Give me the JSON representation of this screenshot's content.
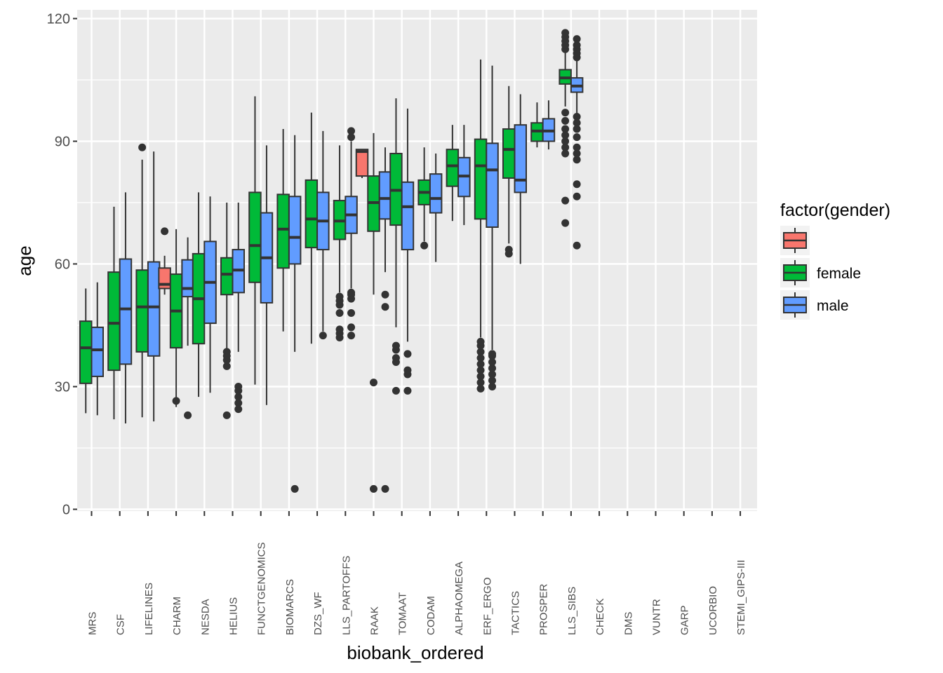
{
  "chart_data": {
    "type": "boxplot",
    "xlabel": "biobank_ordered",
    "ylabel": "age",
    "ylim": [
      0,
      120
    ],
    "yticks": [
      0,
      30,
      60,
      90,
      120
    ],
    "grid": true,
    "legend_position": "right",
    "legend": {
      "title": "factor(gender)",
      "entries": [
        {
          "label": "",
          "color": "#F8766D"
        },
        {
          "label": "female",
          "color": "#00BA38"
        },
        {
          "label": "male",
          "color": "#619CFF"
        }
      ]
    },
    "colors": {
      "unknown": "#F8766D",
      "female": "#00BA38",
      "male": "#619CFF",
      "panel": "#EBEBEB",
      "grid": "#FFFFFF",
      "outline": "#333333"
    },
    "categories": [
      "MRS",
      "CSF",
      "LIFELINES",
      "CHARM",
      "NESDA",
      "HELIUS",
      "FUNCTGENOMICS",
      "BIOMARCS",
      "DZS_WF",
      "LLS_PARTOFFS",
      "RAAK",
      "TOMAAT",
      "CODAM",
      "ALPHAOMEGA",
      "ERF_ERGO",
      "TACTICS",
      "PROSPER",
      "LLS_SIBS",
      "CHECK",
      "DMS",
      "VUNTR",
      "GARP",
      "UCORBIO",
      "STEMI_GIPS-III"
    ],
    "groups": [
      {
        "category": "MRS",
        "boxes": [
          {
            "gender": "female",
            "min": 23.5,
            "q1": 30.8,
            "median": 39.5,
            "q3": 46.0,
            "max": 54.0,
            "outliers": []
          },
          {
            "gender": "male",
            "min": 23.0,
            "q1": 32.5,
            "median": 39.0,
            "q3": 44.5,
            "max": 55.5,
            "outliers": []
          }
        ]
      },
      {
        "category": "CSF",
        "boxes": [
          {
            "gender": "female",
            "min": 22.0,
            "q1": 34.0,
            "median": 45.5,
            "q3": 58.0,
            "max": 74.0,
            "outliers": []
          },
          {
            "gender": "male",
            "min": 21.0,
            "q1": 35.5,
            "median": 49.0,
            "q3": 61.2,
            "max": 77.5,
            "outliers": []
          }
        ]
      },
      {
        "category": "LIFELINES",
        "boxes": [
          {
            "gender": "female",
            "min": 22.5,
            "q1": 38.5,
            "median": 49.5,
            "q3": 58.5,
            "max": 85.5,
            "outliers": [
              88.5
            ]
          },
          {
            "gender": "male",
            "min": 21.5,
            "q1": 37.5,
            "median": 49.5,
            "q3": 60.5,
            "max": 87.5,
            "outliers": []
          }
        ]
      },
      {
        "category": "CHARM",
        "boxes": [
          {
            "gender": "unknown",
            "min": 52.5,
            "q1": 54.0,
            "median": 55.0,
            "q3": 59.0,
            "max": 62.0,
            "outliers": [
              68.0
            ]
          },
          {
            "gender": "female",
            "min": 25.0,
            "q1": 39.5,
            "median": 48.5,
            "q3": 57.5,
            "max": 68.5,
            "outliers": [
              26.5
            ]
          },
          {
            "gender": "male",
            "min": 40.0,
            "q1": 52.0,
            "median": 54.0,
            "q3": 61.0,
            "max": 66.5,
            "outliers": [
              23.0
            ]
          }
        ]
      },
      {
        "category": "NESDA",
        "boxes": [
          {
            "gender": "female",
            "min": 27.5,
            "q1": 40.5,
            "median": 51.5,
            "q3": 62.5,
            "max": 77.5,
            "outliers": []
          },
          {
            "gender": "male",
            "min": 28.5,
            "q1": 45.5,
            "median": 55.5,
            "q3": 65.5,
            "max": 76.5,
            "outliers": []
          }
        ]
      },
      {
        "category": "HELIUS",
        "boxes": [
          {
            "gender": "female",
            "min": 39.0,
            "q1": 52.5,
            "median": 57.5,
            "q3": 61.5,
            "max": 75.0,
            "outliers": [
              23.0,
              35.0,
              36.5,
              37.5,
              38.5
            ]
          },
          {
            "gender": "male",
            "min": 38.5,
            "q1": 53.0,
            "median": 58.5,
            "q3": 63.5,
            "max": 75.0,
            "outliers": [
              24.5,
              26.0,
              27.5,
              29.0,
              30.0
            ]
          }
        ]
      },
      {
        "category": "FUNCTGENOMICS",
        "boxes": [
          {
            "gender": "female",
            "min": 30.5,
            "q1": 55.5,
            "median": 64.5,
            "q3": 77.5,
            "max": 101.0,
            "outliers": []
          },
          {
            "gender": "male",
            "min": 25.5,
            "q1": 50.5,
            "median": 61.5,
            "q3": 72.5,
            "max": 89.0,
            "outliers": []
          }
        ]
      },
      {
        "category": "BIOMARCS",
        "boxes": [
          {
            "gender": "female",
            "min": 43.5,
            "q1": 59.0,
            "median": 68.5,
            "q3": 77.0,
            "max": 93.0,
            "outliers": []
          },
          {
            "gender": "male",
            "min": 38.5,
            "q1": 60.0,
            "median": 66.5,
            "q3": 76.5,
            "max": 91.5,
            "outliers": [
              5.0
            ]
          }
        ]
      },
      {
        "category": "DZS_WF",
        "boxes": [
          {
            "gender": "female",
            "min": 40.5,
            "q1": 64.0,
            "median": 71.0,
            "q3": 80.5,
            "max": 97.0,
            "outliers": []
          },
          {
            "gender": "male",
            "min": 43.5,
            "q1": 63.5,
            "median": 70.5,
            "q3": 77.5,
            "max": 92.5,
            "outliers": [
              42.5
            ]
          }
        ]
      },
      {
        "category": "LLS_PARTOFFS",
        "boxes": [
          {
            "gender": "female",
            "min": 53.0,
            "q1": 66.0,
            "median": 70.5,
            "q3": 75.5,
            "max": 89.0,
            "outliers": [
              42.0,
              43.0,
              44.0,
              48.0,
              50.0,
              51.0,
              52.0
            ]
          },
          {
            "gender": "male",
            "min": 54.0,
            "q1": 67.5,
            "median": 72.0,
            "q3": 76.5,
            "max": 90.0,
            "outliers": [
              42.5,
              44.5,
              48.0,
              51.5,
              52.5,
              53.0,
              91.0,
              92.5
            ]
          }
        ]
      },
      {
        "category": "RAAK",
        "boxes": [
          {
            "gender": "unknown",
            "min": 81.0,
            "q1": 81.5,
            "median": 87.5,
            "q3": 88.0,
            "max": 88.0,
            "outliers": []
          },
          {
            "gender": "female",
            "min": 52.5,
            "q1": 68.0,
            "median": 75.0,
            "q3": 81.5,
            "max": 92.0,
            "outliers": [
              5.0,
              31.0
            ]
          },
          {
            "gender": "male",
            "min": 58.0,
            "q1": 71.0,
            "median": 76.0,
            "q3": 82.5,
            "max": 88.5,
            "outliers": [
              5.0,
              49.5,
              52.5
            ]
          }
        ]
      },
      {
        "category": "TOMAAT",
        "boxes": [
          {
            "gender": "female",
            "min": 44.5,
            "q1": 69.5,
            "median": 78.0,
            "q3": 87.0,
            "max": 100.5,
            "outliers": [
              29.0,
              36.0,
              37.0,
              39.0,
              40.0
            ]
          },
          {
            "gender": "male",
            "min": 41.0,
            "q1": 63.5,
            "median": 74.0,
            "q3": 80.0,
            "max": 98.0,
            "outliers": [
              29.0,
              33.0,
              34.0,
              38.0
            ]
          }
        ]
      },
      {
        "category": "CODAM",
        "boxes": [
          {
            "gender": "female",
            "min": 65.5,
            "q1": 74.5,
            "median": 77.5,
            "q3": 80.5,
            "max": 88.5,
            "outliers": [
              64.5
            ]
          },
          {
            "gender": "male",
            "min": 60.5,
            "q1": 72.5,
            "median": 76.0,
            "q3": 82.0,
            "max": 87.0,
            "outliers": []
          }
        ]
      },
      {
        "category": "ALPHAOMEGA",
        "boxes": [
          {
            "gender": "female",
            "min": 70.5,
            "q1": 79.0,
            "median": 84.0,
            "q3": 88.0,
            "max": 94.0,
            "outliers": []
          },
          {
            "gender": "male",
            "min": 69.5,
            "q1": 76.5,
            "median": 81.5,
            "q3": 86.0,
            "max": 94.0,
            "outliers": []
          }
        ]
      },
      {
        "category": "ERF_ERGO",
        "boxes": [
          {
            "gender": "female",
            "min": 42.0,
            "q1": 71.0,
            "median": 84.0,
            "q3": 90.5,
            "max": 110.0,
            "outliers": [
              29.5,
              31.0,
              32.5,
              34.0,
              35.5,
              37.0,
              38.5,
              40.0,
              41.0
            ]
          },
          {
            "gender": "male",
            "min": 39.0,
            "q1": 69.0,
            "median": 83.0,
            "q3": 89.5,
            "max": 108.5,
            "outliers": [
              30.0,
              31.5,
              33.0,
              34.5,
              36.0,
              37.5,
              38.0
            ]
          }
        ]
      },
      {
        "category": "TACTICS",
        "boxes": [
          {
            "gender": "female",
            "min": 65.0,
            "q1": 81.0,
            "median": 88.0,
            "q3": 93.0,
            "max": 103.5,
            "outliers": [
              62.5,
              63.5
            ]
          },
          {
            "gender": "male",
            "min": 60.0,
            "q1": 77.5,
            "median": 80.5,
            "q3": 94.0,
            "max": 101.5,
            "outliers": []
          }
        ]
      },
      {
        "category": "PROSPER",
        "boxes": [
          {
            "gender": "female",
            "min": 88.5,
            "q1": 90.0,
            "median": 92.5,
            "q3": 94.5,
            "max": 99.5,
            "outliers": []
          },
          {
            "gender": "male",
            "min": 88.0,
            "q1": 90.0,
            "median": 92.5,
            "q3": 95.5,
            "max": 100.0,
            "outliers": []
          }
        ]
      },
      {
        "category": "LLS_SIBS",
        "boxes": [
          {
            "gender": "female",
            "min": 98.5,
            "q1": 104.0,
            "median": 105.5,
            "q3": 107.5,
            "max": 112.0,
            "outliers": [
              70.0,
              75.5,
              87.0,
              88.5,
              90.0,
              91.5,
              93.0,
              95.0,
              97.0,
              112.5,
              113.5,
              114.5,
              115.5,
              116.5
            ]
          },
          {
            "gender": "male",
            "min": 96.5,
            "q1": 102.0,
            "median": 103.5,
            "q3": 105.5,
            "max": 110.0,
            "outliers": [
              64.5,
              76.5,
              79.5,
              85.5,
              87.0,
              88.5,
              91.0,
              93.0,
              94.5,
              96.0,
              110.5,
              111.5,
              112.5,
              113.5,
              115.0
            ]
          }
        ]
      },
      {
        "category": "CHECK",
        "boxes": []
      },
      {
        "category": "DMS",
        "boxes": []
      },
      {
        "category": "VUNTR",
        "boxes": []
      },
      {
        "category": "GARP",
        "boxes": []
      },
      {
        "category": "UCORBIO",
        "boxes": []
      },
      {
        "category": "STEMI_GIPS-III",
        "boxes": []
      }
    ]
  }
}
